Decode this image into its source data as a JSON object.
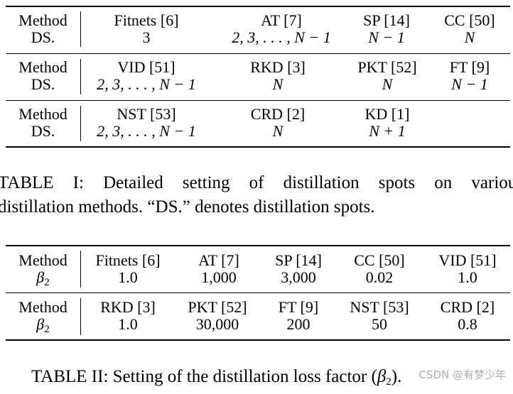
{
  "table1": {
    "rows": [
      {
        "label_top": "Method",
        "label_bottom": "DS.",
        "cells": [
          {
            "method": "Fitnets [6]",
            "value": "3"
          },
          {
            "method": "AT [7]",
            "value": "2, 3, . . . , N − 1"
          },
          {
            "method": "SP [14]",
            "value": "N − 1"
          },
          {
            "method": "CC [50]",
            "value": "N"
          }
        ]
      },
      {
        "label_top": "Method",
        "label_bottom": "DS.",
        "cells": [
          {
            "method": "VID [51]",
            "value": "2, 3, . . . , N − 1"
          },
          {
            "method": "RKD [3]",
            "value": "N"
          },
          {
            "method": "PKT [52]",
            "value": "N"
          },
          {
            "method": "FT [9]",
            "value": "N − 1"
          }
        ]
      },
      {
        "label_top": "Method",
        "label_bottom": "DS.",
        "cells": [
          {
            "method": "NST [53]",
            "value": "2, 3, . . . , N − 1"
          },
          {
            "method": "CRD [2]",
            "value": "N"
          },
          {
            "method": "KD [1]",
            "value": "N + 1"
          }
        ]
      }
    ],
    "caption_line1": "TABLE I: Detailed setting of distillation spots on various",
    "caption_line2": "distillation methods. “DS.” denotes distillation spots."
  },
  "table2": {
    "rows": [
      {
        "label_top": "Method",
        "label_bottom_symbol": "β",
        "label_bottom_sub": "2",
        "cells": [
          {
            "method": "Fitnets [6]",
            "value": "1.0"
          },
          {
            "method": "AT [7]",
            "value": "1,000"
          },
          {
            "method": "SP [14]",
            "value": "3,000"
          },
          {
            "method": "CC [50]",
            "value": "0.02"
          },
          {
            "method": "VID [51]",
            "value": "1.0"
          }
        ]
      },
      {
        "label_top": "Method",
        "label_bottom_symbol": "β",
        "label_bottom_sub": "2",
        "cells": [
          {
            "method": "RKD [3]",
            "value": "1.0"
          },
          {
            "method": "PKT [52]",
            "value": "30,000"
          },
          {
            "method": "FT [9]",
            "value": "200"
          },
          {
            "method": "NST [53]",
            "value": "50"
          },
          {
            "method": "CRD [2]",
            "value": "0.8"
          }
        ]
      }
    ],
    "caption_prefix": "TABLE II: Setting of the distillation loss factor (",
    "caption_symbol": "β",
    "caption_sub": "2",
    "caption_suffix": ")."
  },
  "watermark": "CSDN @有梦少年"
}
